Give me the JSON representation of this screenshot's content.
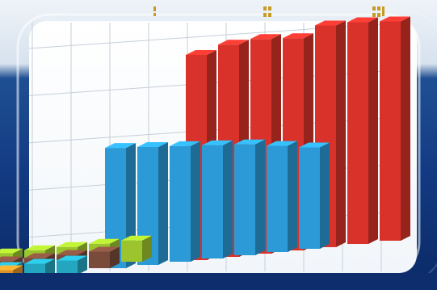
{
  "chart_data": {
    "type": "bar",
    "title": "",
    "xlabel": "",
    "ylabel": "",
    "ylim": [
      0,
      500
    ],
    "yticks": [
      "100",
      "200",
      "300",
      "400",
      "500"
    ],
    "grid": true,
    "three_d": true,
    "series": [
      {
        "color": "#d8322a",
        "values": [
          435,
          450,
          455,
          450,
          470,
          470,
          465
        ]
      },
      {
        "color": "#2b9ad6",
        "values": [
          255,
          250,
          245,
          240,
          235,
          225,
          215
        ]
      },
      {
        "color": "#9cc42c",
        "values": [
          45,
          45,
          45,
          45,
          45
        ]
      },
      {
        "color": "#7a4a3a",
        "values": [
          35,
          35,
          35,
          35,
          35
        ]
      },
      {
        "color": "#25a6c0",
        "values": [
          30,
          30,
          30,
          30,
          30
        ]
      },
      {
        "color": "#e0922a",
        "values": [
          30,
          30,
          30,
          30
        ]
      }
    ]
  },
  "colors": {
    "background_top": "#e8eff6",
    "background_bottom": "#0e2f72",
    "grid": "#c6cfd8",
    "accent_glyph": "#c79a22"
  },
  "decor": {
    "top_glyph_icons": [
      "glyph-icon",
      "glyph-icon",
      "glyph-icon"
    ]
  }
}
